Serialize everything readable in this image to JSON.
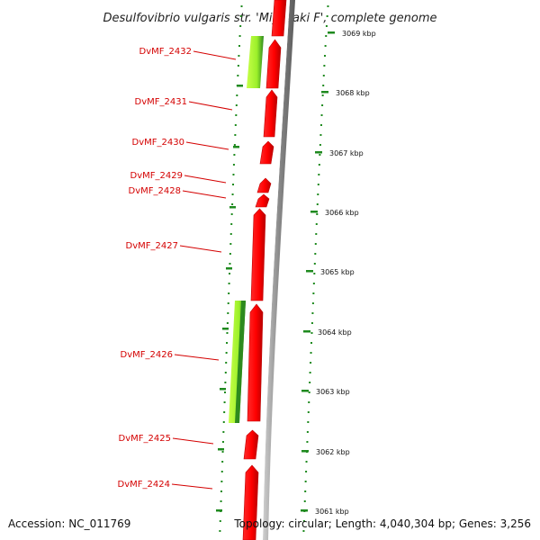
{
  "title": "Desulfovibrio vulgaris str. 'Miyazaki F', complete genome",
  "accession": "Accession: NC_011769",
  "topology": "Topology: circular; Length: 4,040,304 bp; Genes: 3,256",
  "colors": {
    "gene": "#ff0000",
    "gene_dark": "#c00000",
    "feature_light": "#a6ff2a",
    "feature_dark": "#2d8a1e",
    "tick": "#1f8a1f",
    "label": "#d40000",
    "backbone": "#8c8c8c"
  },
  "ticks": [
    {
      "label": "3069 kbp"
    },
    {
      "label": "3068 kbp"
    },
    {
      "label": "3067 kbp"
    },
    {
      "label": "3066 kbp"
    },
    {
      "label": "3065 kbp"
    },
    {
      "label": "3064 kbp"
    },
    {
      "label": "3063 kbp"
    },
    {
      "label": "3062 kbp"
    },
    {
      "label": "3061 kbp"
    }
  ],
  "genes": [
    {
      "label": "DvMF_2432"
    },
    {
      "label": "DvMF_2431"
    },
    {
      "label": "DvMF_2430"
    },
    {
      "label": "DvMF_2429"
    },
    {
      "label": "DvMF_2428"
    },
    {
      "label": "DvMF_2427"
    },
    {
      "label": "DvMF_2426"
    },
    {
      "label": "DvMF_2425"
    },
    {
      "label": "DvMF_2424"
    }
  ]
}
